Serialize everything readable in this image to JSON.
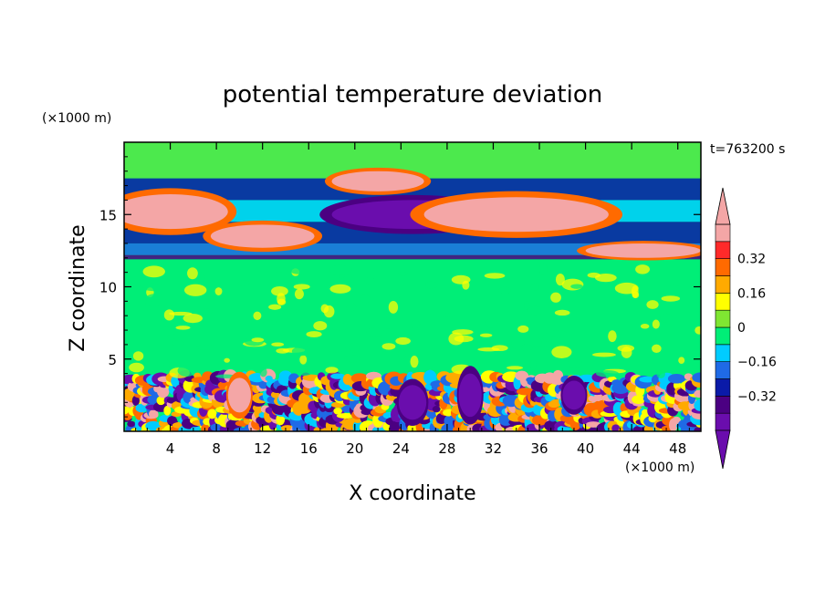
{
  "chart_data": {
    "type": "heatmap",
    "title": "potential temperature deviation",
    "xlabel": "X coordinate",
    "ylabel": "Z coordinate",
    "x_unit": "(×1000 m)",
    "y_unit": "(×1000 m)",
    "time_label": "t=763200 s",
    "xlim": [
      0,
      50
    ],
    "ylim": [
      0,
      20
    ],
    "x_ticks": [
      4,
      8,
      12,
      16,
      20,
      24,
      28,
      32,
      36,
      40,
      44,
      48
    ],
    "y_ticks": [
      5,
      10,
      15
    ],
    "colorbar": {
      "levels": [
        -0.48,
        -0.4,
        -0.32,
        -0.24,
        -0.16,
        -0.08,
        0,
        0.08,
        0.16,
        0.24,
        0.32,
        0.4,
        0.48
      ],
      "labels": [
        "0.32",
        "0.16",
        "0",
        "−0.16",
        "−0.32"
      ],
      "label_values": [
        0.32,
        0.16,
        0,
        -0.16,
        -0.32
      ],
      "colors": [
        "#6a0dad",
        "#4b0082",
        "#0a1aa8",
        "#1f6ae6",
        "#00ccff",
        "#00ee77",
        "#7fe632",
        "#ffff00",
        "#ffaa00",
        "#ff6a00",
        "#ff2a2a",
        "#f4a6a6"
      ],
      "under_color": "#6a0dad",
      "over_color": "#f4a6a6"
    },
    "features": [
      {
        "kind": "band",
        "z": [
          11.9,
          12.2
        ],
        "value": -0.4,
        "x": [
          0,
          50
        ]
      },
      {
        "kind": "band",
        "z": [
          12.2,
          13.0
        ],
        "value": -0.2,
        "x": [
          0,
          50
        ]
      },
      {
        "kind": "band",
        "z": [
          13.0,
          14.5
        ],
        "value": -0.3,
        "x": [
          0,
          50
        ]
      },
      {
        "kind": "band",
        "z": [
          14.5,
          16.0
        ],
        "value": -0.1,
        "x": [
          0,
          50
        ]
      },
      {
        "kind": "band",
        "z": [
          16.0,
          17.5
        ],
        "value": -0.25,
        "x": [
          0,
          50
        ]
      },
      {
        "kind": "blob",
        "x": 4,
        "z": 15.2,
        "rx": 5,
        "rz": 1.2,
        "value": 0.45
      },
      {
        "kind": "blob",
        "x": 12,
        "z": 13.5,
        "rx": 4.5,
        "rz": 0.8,
        "value": 0.45
      },
      {
        "kind": "blob",
        "x": 22,
        "z": 17.3,
        "rx": 4,
        "rz": 0.7,
        "value": 0.45
      },
      {
        "kind": "blob",
        "x": 25,
        "z": 15,
        "rx": 7,
        "rz": 1.0,
        "value": -0.45
      },
      {
        "kind": "blob",
        "x": 34,
        "z": 15,
        "rx": 8,
        "rz": 1.2,
        "value": 0.45
      },
      {
        "kind": "blob",
        "x": 45,
        "z": 12.5,
        "rx": 5,
        "rz": 0.5,
        "value": 0.45
      },
      {
        "kind": "blob",
        "x": 10,
        "z": 2.5,
        "rx": 1,
        "rz": 1.2,
        "value": 0.45
      },
      {
        "kind": "blob",
        "x": 25,
        "z": 2,
        "rx": 1.2,
        "rz": 1.2,
        "value": -0.45
      },
      {
        "kind": "blob",
        "x": 30,
        "z": 2.5,
        "rx": 1,
        "rz": 1.5,
        "value": -0.45
      },
      {
        "kind": "blob",
        "x": 39,
        "z": 2.5,
        "rx": 1,
        "rz": 1,
        "value": -0.45
      }
    ]
  }
}
